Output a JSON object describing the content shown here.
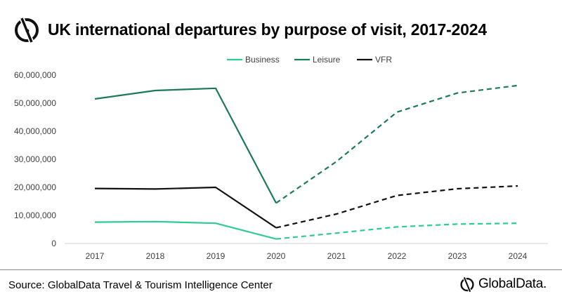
{
  "header": {
    "title": "UK international departures by purpose of visit, 2017-2024",
    "logo_icon": "globaldata-logo-icon"
  },
  "footer": {
    "source": "Source: GlobalData Travel & Tourism Intelligence Center",
    "brand": "GlobalData."
  },
  "chart_data": {
    "type": "line",
    "title": "UK international departures by purpose of visit, 2017-2024",
    "x": [
      "2017",
      "2018",
      "2019",
      "2020",
      "2021",
      "2022",
      "2023",
      "2024"
    ],
    "ylim": [
      0,
      60000000
    ],
    "yticks": [
      "0",
      "10,000,000",
      "20,000,000",
      "30,000,000",
      "40,000,000",
      "50,000,000",
      "60,000,000"
    ],
    "grid": false,
    "legend_position": "top-center",
    "forecast_from": "2020",
    "series": [
      {
        "name": "Business",
        "color": "#2ecc8f",
        "values": [
          7600000,
          7800000,
          7200000,
          1600000,
          3700000,
          5900000,
          6900000,
          7200000
        ]
      },
      {
        "name": "Leisure",
        "color": "#1b7a5a",
        "values": [
          51500000,
          54500000,
          55300000,
          14400000,
          29200000,
          46800000,
          53600000,
          56300000
        ]
      },
      {
        "name": "VFR",
        "color": "#111111",
        "values": [
          19600000,
          19400000,
          20000000,
          5600000,
          10500000,
          17100000,
          19500000,
          20500000
        ]
      }
    ]
  }
}
